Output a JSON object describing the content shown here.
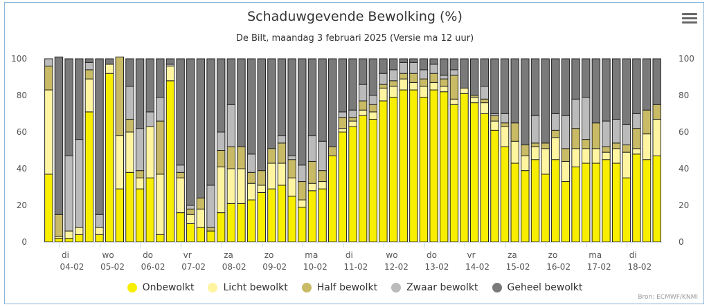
{
  "header": {
    "title": "Schaduwgevende Bewolking (%)",
    "subtitle": "De Bilt, maandag 3 februari 2025 (Versie ma 12 uur)",
    "credit": "Bron: ECMWF/KNMI"
  },
  "menu": {
    "icon": "hamburger-menu-icon"
  },
  "chart_data": {
    "type": "bar",
    "stacked": true,
    "title": "Schaduwgevende Bewolking (%)",
    "subtitle": "De Bilt, maandag 3 februari 2025 (Versie ma 12 uur)",
    "xlabel": "",
    "ylabel": "",
    "ylim": [
      0,
      100
    ],
    "yticks": [
      0,
      20,
      40,
      60,
      80,
      100
    ],
    "grid": false,
    "legend_position": "bottom-center",
    "day_ticks": [
      {
        "weekday": "di",
        "date": "04-02"
      },
      {
        "weekday": "wo",
        "date": "05-02"
      },
      {
        "weekday": "do",
        "date": "06-02"
      },
      {
        "weekday": "vr",
        "date": "07-02"
      },
      {
        "weekday": "za",
        "date": "08-02"
      },
      {
        "weekday": "zo",
        "date": "09-02"
      },
      {
        "weekday": "ma",
        "date": "10-02"
      },
      {
        "weekday": "di",
        "date": "11-02"
      },
      {
        "weekday": "wo",
        "date": "12-02"
      },
      {
        "weekday": "do",
        "date": "13-02"
      },
      {
        "weekday": "vr",
        "date": "14-02"
      },
      {
        "weekday": "za",
        "date": "15-02"
      },
      {
        "weekday": "zo",
        "date": "16-02"
      },
      {
        "weekday": "ma",
        "date": "17-02"
      },
      {
        "weekday": "di",
        "date": "18-02"
      }
    ],
    "series": [
      {
        "name": "Onbewolkt",
        "color": "#f7ee00",
        "values": [
          37,
          2,
          2,
          4,
          71,
          4,
          92,
          29,
          38,
          29,
          35,
          4,
          88,
          16,
          10,
          8,
          6,
          16,
          21,
          21,
          23,
          27,
          29,
          31,
          25,
          19,
          28,
          29,
          47,
          60,
          63,
          69,
          67,
          77,
          79,
          83,
          83,
          79,
          83,
          82,
          75,
          81,
          76,
          70,
          61,
          52,
          43,
          39,
          45,
          37,
          45,
          33,
          41,
          43,
          43,
          45,
          43,
          35,
          48,
          45,
          47
        ],
        "stack_totals": [
          37,
          2,
          2,
          4,
          71,
          4,
          92,
          29,
          38,
          29,
          35,
          4,
          88,
          16,
          10,
          8,
          6,
          16,
          21,
          21,
          23,
          27,
          29,
          31,
          25,
          19,
          28,
          29,
          47,
          60,
          63,
          69,
          67,
          77,
          79,
          83,
          83,
          79,
          83,
          82,
          75,
          81,
          76,
          70,
          61,
          52,
          43,
          39,
          45,
          37,
          45,
          33,
          41,
          43,
          43,
          45,
          43,
          35,
          48,
          45,
          47
        ]
      },
      {
        "name": "Licht bewolkt",
        "color": "#fff5a0",
        "values": [
          46,
          1,
          4,
          4,
          18,
          4,
          5,
          29,
          22,
          6,
          28,
          33,
          8,
          19,
          5,
          10,
          0,
          25,
          19,
          19,
          9,
          4,
          14,
          12,
          10,
          4,
          4,
          4,
          0,
          2,
          3,
          3,
          4,
          7,
          6,
          6,
          4,
          6,
          4,
          3,
          3,
          3,
          3,
          6,
          5,
          11,
          12,
          8,
          7,
          14,
          12,
          11,
          10,
          8,
          8,
          4,
          8,
          14,
          3,
          14,
          20
        ],
        "stack_totals": [
          83,
          3,
          6,
          8,
          89,
          8,
          97,
          58,
          60,
          35,
          63,
          37,
          96,
          35,
          15,
          18,
          6,
          41,
          40,
          40,
          32,
          31,
          43,
          43,
          35,
          23,
          32,
          33,
          47,
          62,
          66,
          72,
          71,
          84,
          85,
          89,
          87,
          85,
          87,
          85,
          78,
          84,
          79,
          76,
          66,
          63,
          55,
          47,
          52,
          51,
          57,
          44,
          51,
          51,
          51,
          49,
          51,
          49,
          51,
          59,
          67
        ]
      },
      {
        "name": "Half bewolkt",
        "color": "#c9bb65",
        "values": [
          13,
          12,
          0,
          0,
          5,
          0,
          0,
          43,
          7,
          4,
          0,
          29,
          0,
          3,
          3,
          6,
          2,
          9,
          12,
          12,
          6,
          8,
          8,
          11,
          10,
          10,
          12,
          6,
          5,
          6,
          2,
          5,
          4,
          2,
          3,
          3,
          5,
          4,
          5,
          4,
          13,
          0,
          1,
          2,
          3,
          2,
          10,
          6,
          2,
          3,
          4,
          7,
          11,
          5,
          14,
          3,
          3,
          4,
          11,
          13,
          8
        ],
        "stack_totals": [
          96,
          14,
          6,
          8,
          94,
          8,
          97,
          100,
          67,
          39,
          63,
          66,
          96,
          38,
          18,
          24,
          8,
          50,
          52,
          52,
          38,
          39,
          51,
          54,
          45,
          33,
          44,
          39,
          52,
          68,
          68,
          77,
          75,
          86,
          88,
          92,
          92,
          89,
          92,
          89,
          91,
          84,
          80,
          78,
          69,
          65,
          65,
          53,
          54,
          54,
          61,
          51,
          62,
          56,
          65,
          52,
          54,
          53,
          62,
          72,
          75
        ]
      },
      {
        "name": "Zwaar bewolkt",
        "color": "#bbbbbb",
        "values": [
          4,
          0,
          41,
          48,
          4,
          7,
          0,
          0,
          18,
          23,
          8,
          13,
          1,
          4,
          2,
          0,
          23,
          10,
          23,
          0,
          10,
          0,
          0,
          4,
          2,
          9,
          14,
          16,
          0,
          3,
          4,
          9,
          5,
          6,
          6,
          6,
          6,
          5,
          5,
          2,
          3,
          0,
          0,
          7,
          1,
          5,
          0,
          0,
          15,
          0,
          9,
          18,
          16,
          23,
          0,
          14,
          13,
          11,
          8,
          0,
          0
        ],
        "stack_totals": [
          100,
          14,
          47,
          56,
          98,
          15,
          97,
          100,
          85,
          62,
          71,
          79,
          97,
          42,
          20,
          24,
          31,
          60,
          75,
          52,
          48,
          39,
          51,
          58,
          47,
          42,
          58,
          55,
          52,
          71,
          72,
          86,
          80,
          92,
          94,
          98,
          98,
          94,
          97,
          91,
          94,
          84,
          80,
          85,
          70,
          70,
          65,
          53,
          69,
          54,
          70,
          69,
          78,
          79,
          65,
          66,
          67,
          64,
          70,
          72,
          75
        ]
      },
      {
        "name": "Geheel bewolkt",
        "color": "#7a7a7a",
        "values": [
          0,
          86,
          53,
          44,
          2,
          85,
          3,
          0,
          15,
          38,
          29,
          21,
          3,
          58,
          80,
          76,
          69,
          40,
          25,
          48,
          52,
          61,
          49,
          42,
          53,
          58,
          42,
          45,
          48,
          29,
          28,
          14,
          20,
          8,
          6,
          2,
          2,
          6,
          3,
          9,
          6,
          16,
          20,
          15,
          30,
          30,
          35,
          47,
          31,
          46,
          30,
          31,
          22,
          21,
          35,
          34,
          33,
          36,
          30,
          28,
          25
        ],
        "stack_totals": [
          100,
          100,
          100,
          100,
          100,
          100,
          100,
          100,
          100,
          100,
          100,
          100,
          100,
          100,
          100,
          100,
          100,
          100,
          100,
          100,
          100,
          100,
          100,
          100,
          100,
          100,
          100,
          100,
          100,
          100,
          100,
          100,
          100,
          100,
          100,
          100,
          100,
          100,
          100,
          100,
          100,
          100,
          100,
          100,
          100,
          100,
          100,
          100,
          100,
          100,
          100,
          100,
          100,
          100,
          100,
          100,
          100,
          100,
          100,
          100,
          100
        ]
      }
    ]
  }
}
